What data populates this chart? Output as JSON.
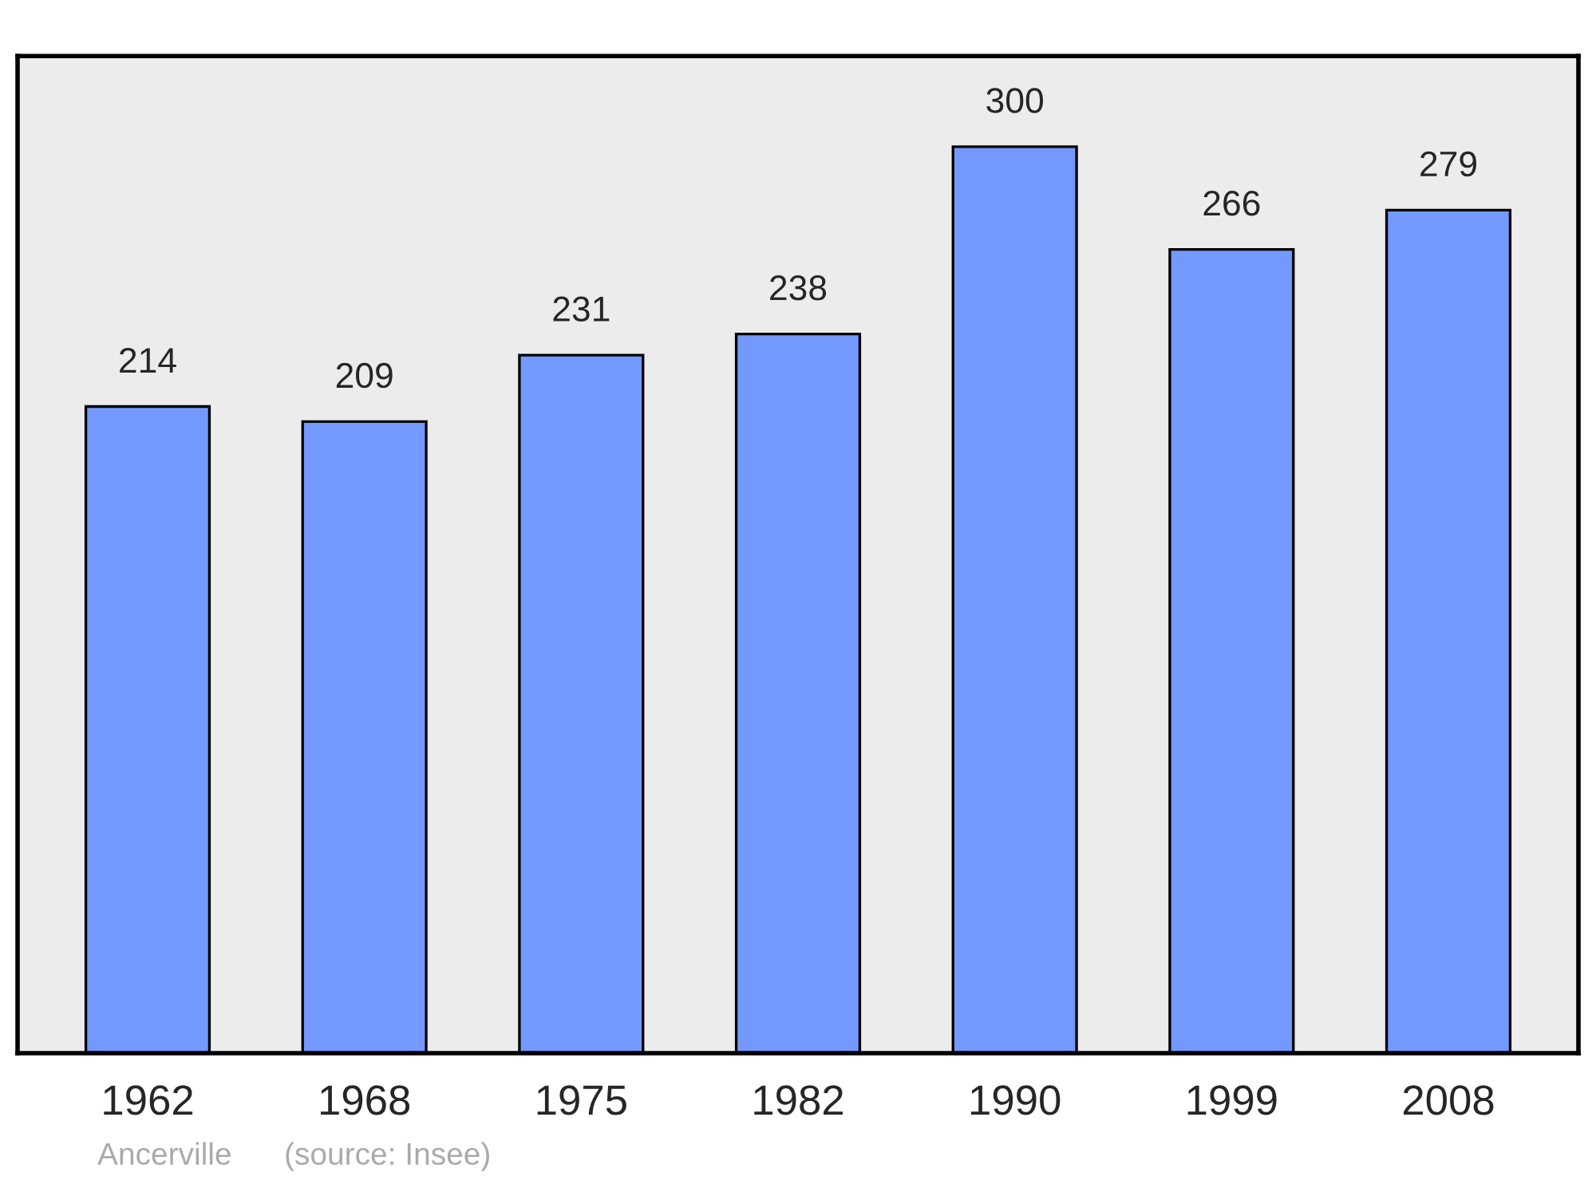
{
  "chart_data": {
    "type": "bar",
    "categories": [
      "1962",
      "1968",
      "1975",
      "1982",
      "1990",
      "1999",
      "2008"
    ],
    "values": [
      214,
      209,
      231,
      238,
      300,
      266,
      279
    ],
    "color": "#7399ff",
    "data_labels": true,
    "grid": false,
    "legend": false,
    "tick_labels": "x",
    "annotations": [
      "Ancerville",
      "(source: Insee)"
    ]
  }
}
